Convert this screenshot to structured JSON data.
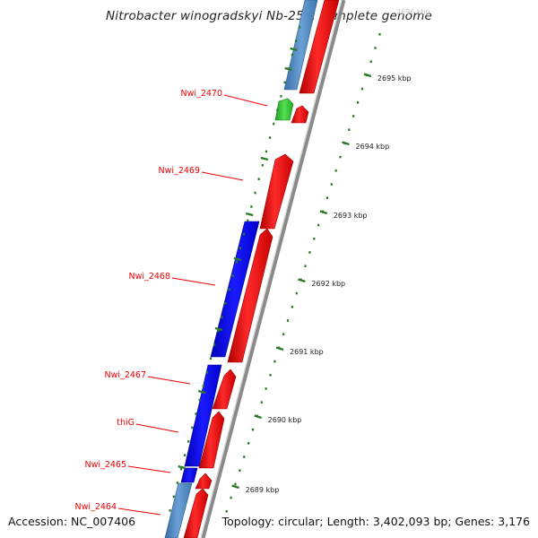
{
  "title": "Nitrobacter winogradskyi Nb-255, complete genome",
  "footer": {
    "accession": "Accession: NC_007406",
    "topology": "Topology: circular; Length: 3,402,093 bp; Genes: 3,176"
  },
  "scale": {
    "top_faded_label": "2696 kbp",
    "ticks": [
      {
        "label": "2695 kbp"
      },
      {
        "label": "2694 kbp"
      },
      {
        "label": "2693 kbp"
      },
      {
        "label": "2692 kbp"
      },
      {
        "label": "2691 kbp"
      },
      {
        "label": "2690 kbp"
      },
      {
        "label": "2689 kbp"
      }
    ]
  },
  "genes": [
    {
      "label": "Nwi_2470",
      "color": "#ee0000"
    },
    {
      "label": "Nwi_2469",
      "color": "#ee0000"
    },
    {
      "label": "Nwi_2468",
      "color": "#ee0000"
    },
    {
      "label": "Nwi_2467",
      "color": "#ee0000"
    },
    {
      "label": "thiG",
      "color": "#ee0000"
    },
    {
      "label": "Nwi_2465",
      "color": "#ee0000"
    },
    {
      "label": "Nwi_2464",
      "color": "#ee0000"
    }
  ],
  "colors": {
    "forward_gene": "#ff1010",
    "cds_blue": "#0000ee",
    "cds_steel": "#4a86c0",
    "rna_green": "#33cc33",
    "backbone": "#888888",
    "tick": "#2a7a2a"
  }
}
